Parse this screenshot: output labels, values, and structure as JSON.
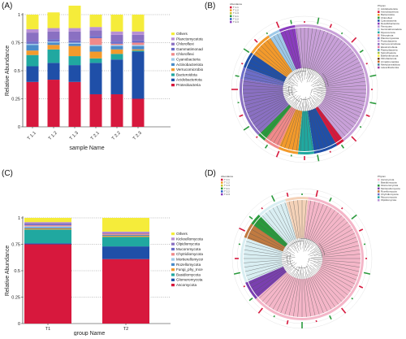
{
  "panels": {
    "a": "(A)",
    "b": "(B)",
    "c": "(C)",
    "d": "(D)"
  },
  "chart_data": [
    {
      "type": "bar",
      "stacked": true,
      "panel": "(A)",
      "xlabel": "sample Name",
      "ylabel": "Relative Abundance",
      "ylim": [
        0,
        1
      ],
      "yticks": [
        "0",
        "0.25",
        "0.5",
        "0.75",
        "1"
      ],
      "grid": "dotted horizontal",
      "categories": [
        "T 1.1",
        "T 1.2",
        "T 1.3",
        "T 2.1",
        "T 2.2",
        "T 2.3"
      ],
      "series": [
        {
          "name": "Proteobacteria",
          "color": "#d7183d",
          "values": [
            0.4,
            0.42,
            0.4,
            0.29,
            0.29,
            0.25
          ]
        },
        {
          "name": "Acidobacteriota",
          "color": "#1f4fa8",
          "values": [
            0.14,
            0.15,
            0.15,
            0.28,
            0.31,
            0.42
          ]
        },
        {
          "name": "Bacteroidota",
          "color": "#20a8a0",
          "values": [
            0.1,
            0.12,
            0.08,
            0.04,
            0.05,
            0.01
          ]
        },
        {
          "name": "Verrucomicrobiota",
          "color": "#f39a2b",
          "values": [
            0.04,
            0.04,
            0.09,
            0.06,
            0.04,
            0.01
          ]
        },
        {
          "name": "Actinobacteriota",
          "color": "#4a8cc9",
          "values": [
            0.05,
            0.02,
            0.02,
            0.05,
            0.03,
            0.03
          ]
        },
        {
          "name": "Cyanobacteria",
          "color": "#9ec9e8",
          "values": [
            0.01,
            0.01,
            0.01,
            0.01,
            0.01,
            0.01
          ]
        },
        {
          "name": "Chloroflexi",
          "color": "#f08a8a",
          "values": [
            0.0,
            0.0,
            0.0,
            0.06,
            0.01,
            0.02
          ]
        },
        {
          "name": "Gammatimonadota",
          "color": "#6c6dc8",
          "values": [
            0.02,
            0.02,
            0.02,
            0.02,
            0.02,
            0.02
          ]
        },
        {
          "name": "Chloroflexi",
          "color": "#8a70c2",
          "values": [
            0.08,
            0.07,
            0.08,
            0.05,
            0.06,
            0.05
          ]
        },
        {
          "name": "Planctomycetota",
          "color": "#b78fd4",
          "values": [
            0.03,
            0.03,
            0.03,
            0.03,
            0.03,
            0.03
          ]
        },
        {
          "name": "Others",
          "color": "#f5ec3a",
          "values": [
            0.13,
            0.14,
            0.2,
            0.11,
            0.15,
            0.15
          ]
        }
      ],
      "legend": [
        "Others",
        "Planctomycetota",
        "Chloroflexi",
        "Gammatimonadota",
        "Chloroflexi",
        "Cyanobacteria",
        "Actinobacteriota",
        "Verrucomicrobiota",
        "Bacteroidota",
        "Acidobacteriota",
        "Proteobacteria"
      ],
      "legend_colors": [
        "#f5ec3a",
        "#b78fd4",
        "#8a70c2",
        "#6c6dc8",
        "#f08a8a",
        "#9ec9e8",
        "#4a8cc9",
        "#f39a2b",
        "#20a8a0",
        "#1f4fa8",
        "#d7183d"
      ]
    },
    {
      "type": "bar",
      "stacked": true,
      "panel": "(C)",
      "xlabel": "group Name",
      "ylabel": "Relative Abundance",
      "ylim": [
        0,
        1
      ],
      "yticks": [
        "0",
        "0.25",
        "0.5",
        "0.75",
        "1"
      ],
      "grid": "dotted horizontal",
      "categories": [
        "T1",
        "T2"
      ],
      "series": [
        {
          "name": "Ascomycota",
          "color": "#d7183d",
          "values": [
            0.75,
            0.61
          ]
        },
        {
          "name": "Glomeromycota",
          "color": "#1f4fa8",
          "values": [
            0.01,
            0.12
          ]
        },
        {
          "name": "Basidiomycota",
          "color": "#20a8a0",
          "values": [
            0.13,
            0.09
          ]
        },
        {
          "name": "Fungi_phy_Incertae_sedis",
          "color": "#f39a2b",
          "values": [
            0.01,
            0.01
          ]
        },
        {
          "name": "Rozellomycota",
          "color": "#4a8cc9",
          "values": [
            0.01,
            0.01
          ]
        },
        {
          "name": "Mortierellomycota",
          "color": "#9ec9e8",
          "values": [
            0.01,
            0.0
          ]
        },
        {
          "name": "Chytridiomycota",
          "color": "#f08a8a",
          "values": [
            0.01,
            0.01
          ]
        },
        {
          "name": "Mucoromycota",
          "color": "#6c6dc8",
          "values": [
            0.01,
            0.0
          ]
        },
        {
          "name": "Olpidiomycota",
          "color": "#8a70c2",
          "values": [
            0.01,
            0.01
          ]
        },
        {
          "name": "Kickxellomycota",
          "color": "#b78fd4",
          "values": [
            0.01,
            0.01
          ]
        },
        {
          "name": "Others",
          "color": "#f5ec3a",
          "values": [
            0.04,
            0.13
          ]
        }
      ],
      "legend": [
        "Others",
        "Kickxellomycota",
        "Olpidiomycota",
        "Mucoromycota",
        "Chytridiomycota",
        "Mortierellomycota",
        "Rozellomycota",
        "Fungi_phy_Incertae_sedis",
        "Basidiomycota",
        "Glomeromycota",
        "Ascomycota"
      ],
      "legend_colors": [
        "#f5ec3a",
        "#b78fd4",
        "#8a70c2",
        "#6c6dc8",
        "#f08a8a",
        "#9ec9e8",
        "#4a8cc9",
        "#f39a2b",
        "#20a8a0",
        "#1f4fa8",
        "#d7183d"
      ]
    },
    {
      "type": "circular_tree",
      "panel": "(B)",
      "legend_left_title": "Abundance",
      "legend_left": [
        "T 1.1",
        "T 1.2",
        "T 1.3",
        "T 2.1",
        "T 2.2",
        "T 2.3"
      ],
      "legend_left_colors": [
        "#d7183d",
        "#f39a2b",
        "#c9c32a",
        "#2a9a3c",
        "#2a62c4",
        "#8a3bbf"
      ],
      "legend_right_title": "Phylum",
      "legend_right": [
        "Acidobacteriota",
        "Actinobacteriota",
        "Bacteroidota",
        "Chloroflexi",
        "Cyanobacteria",
        "Desulfobacterota",
        "Firmicutes",
        "Gemmatimonadota",
        "Myxococcota",
        "Nitrospirota",
        "Planctomycetota",
        "Proteobacteria",
        "Verrucomicrobiota",
        "Elusimicrobiota",
        "Patescibacteria",
        "Spirochaetota",
        "Bdellovibrionota",
        "Fibrobacterota",
        "Armatimonadota",
        "Methylomirabilota",
        "Latescibacterota"
      ],
      "legend_right_colors": [
        "#cccccc",
        "#d7183d",
        "#f39a2b",
        "#2a9a3c",
        "#1f4fa8",
        "#8a3bbf",
        "#b78fd4",
        "#9ec9e8",
        "#20a8a0",
        "#f08a8a",
        "#6c6dc8",
        "#c8a0d8",
        "#8a70c2",
        "#e070a0",
        "#4a8cc9",
        "#a0c040",
        "#f5ec3a",
        "#704020",
        "#c06020",
        "#4080a0",
        "#a040a0"
      ],
      "ring_segments": [
        {
          "color": "#c8a0d8",
          "share": 0.42
        },
        {
          "color": "#d7183d",
          "share": 0.02
        },
        {
          "color": "#1f4fa8",
          "share": 0.06
        },
        {
          "color": "#20a8a0",
          "share": 0.04
        },
        {
          "color": "#f39a2b",
          "share": 0.05
        },
        {
          "color": "#f08a8a",
          "share": 0.04
        },
        {
          "color": "#2a9a3c",
          "share": 0.02
        },
        {
          "color": "#8a70c2",
          "share": 0.15
        },
        {
          "color": "#6c6dc8",
          "share": 0.03
        },
        {
          "color": "#1f4fa8",
          "share": 0.04
        },
        {
          "color": "#f39a2b",
          "share": 0.06
        },
        {
          "color": "#9ec9e8",
          "share": 0.03
        },
        {
          "color": "#8a3bbf",
          "share": 0.04
        }
      ]
    },
    {
      "type": "circular_tree",
      "panel": "(D)",
      "legend_left_title": "Abundance",
      "legend_left": [
        "T 1.1",
        "T 1.2",
        "T 1.3",
        "T 2.1",
        "T 2.2",
        "T 2.3"
      ],
      "legend_left_colors": [
        "#d7183d",
        "#f39a2b",
        "#c9c32a",
        "#2a9a3c",
        "#2a62c4",
        "#8a3bbf"
      ],
      "legend_right_title": "Phylum",
      "legend_right": [
        "Ascomycota",
        "Basidiomycota",
        "Glomeromycota",
        "Mortierellomycota",
        "Rozellomycota",
        "Chytridiomycota",
        "Mucoromycota",
        "Olpidiomycota"
      ],
      "legend_right_colors": [
        "#f4b6c8",
        "#d9eef2",
        "#2a9a3c",
        "#7a3fb0",
        "#c07a40",
        "#6c6dc8",
        "#20a8a0",
        "#b78fd4"
      ],
      "ring_segments": [
        {
          "color": "#f4b6c8",
          "share": 0.62
        },
        {
          "color": "#7a3fb0",
          "share": 0.05
        },
        {
          "color": "#d9eef2",
          "share": 0.12
        },
        {
          "color": "#c07a40",
          "share": 0.04
        },
        {
          "color": "#2a9a3c",
          "share": 0.03
        },
        {
          "color": "#d9eef2",
          "share": 0.08
        },
        {
          "color": "#f4d2b8",
          "share": 0.06
        }
      ]
    }
  ]
}
